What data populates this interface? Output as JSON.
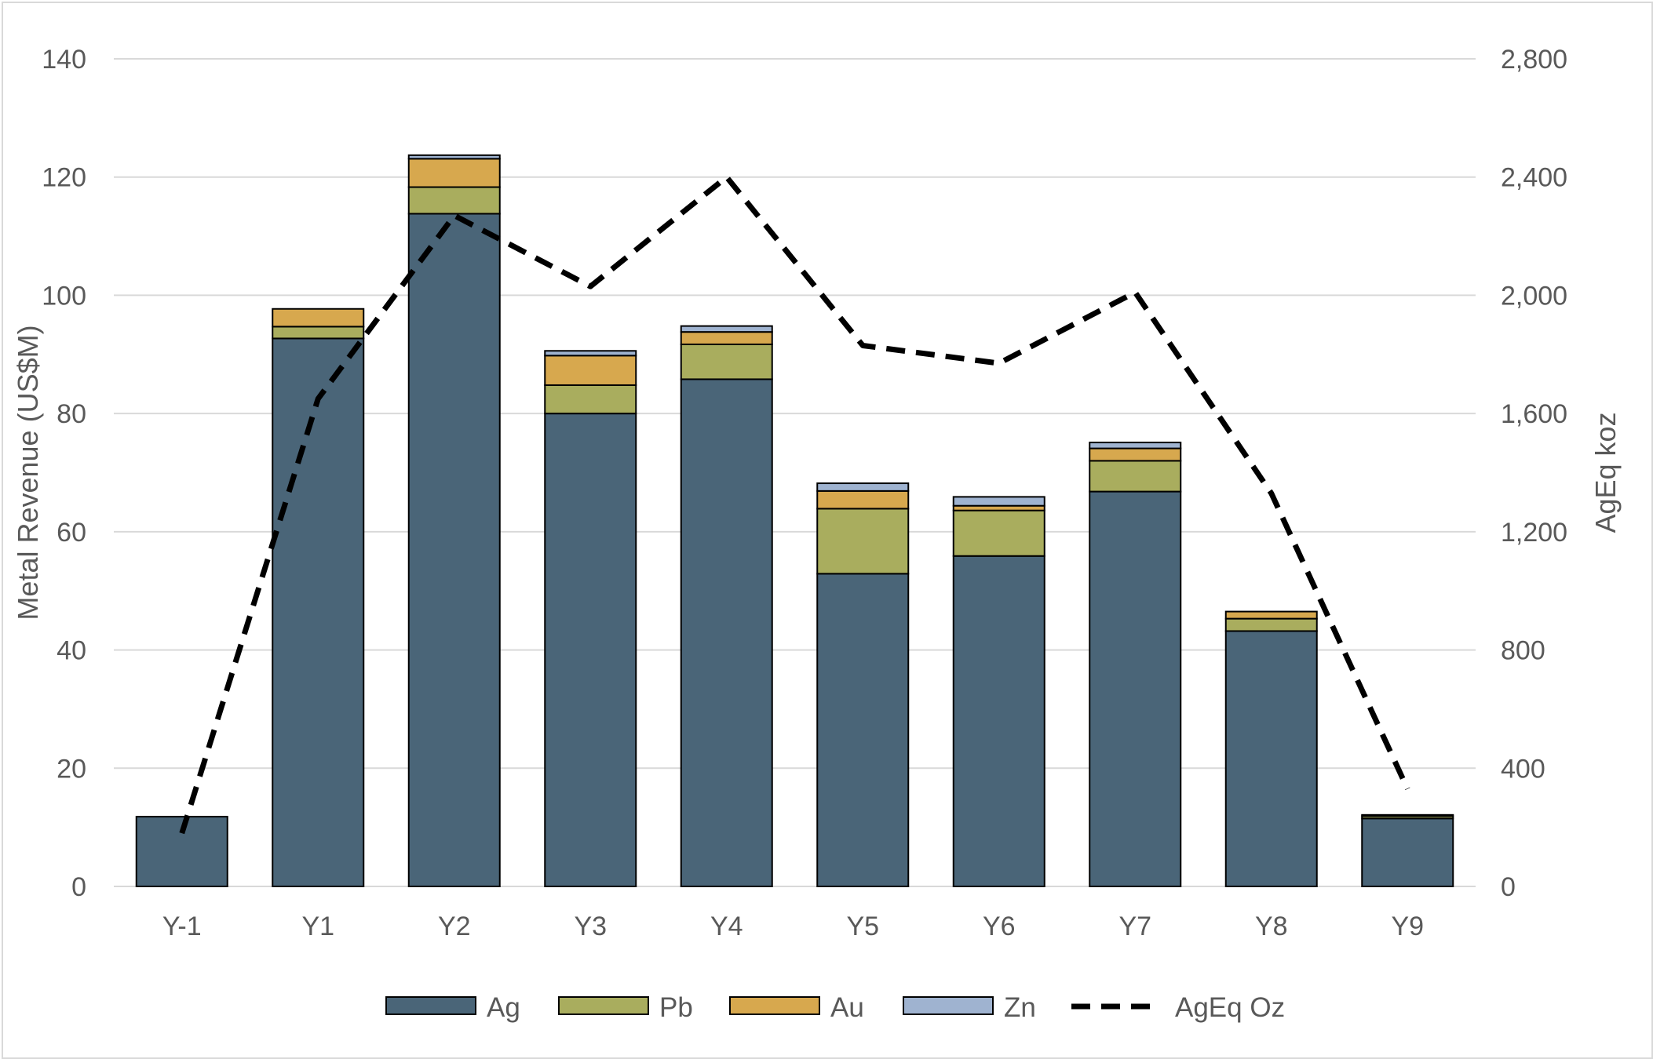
{
  "chart_data": {
    "type": "bar",
    "stacked": true,
    "categories": [
      "Y-1",
      "Y1",
      "Y2",
      "Y3",
      "Y4",
      "Y5",
      "Y6",
      "Y7",
      "Y8",
      "Y9"
    ],
    "series": [
      {
        "name": "Ag",
        "color": "#4a6578",
        "values": [
          11.8,
          92.7,
          113.8,
          80.0,
          85.8,
          52.9,
          55.9,
          66.8,
          43.2,
          11.5
        ]
      },
      {
        "name": "Pb",
        "color": "#a9ad5e",
        "values": [
          0,
          2.0,
          4.5,
          4.8,
          5.9,
          11.0,
          7.7,
          5.2,
          2.1,
          0.4
        ]
      },
      {
        "name": "Au",
        "color": "#d7a84e",
        "values": [
          0,
          3.0,
          4.8,
          5.0,
          2.1,
          3.0,
          0.8,
          2.1,
          1.2,
          0
        ]
      },
      {
        "name": "Zn",
        "color": "#9fb3d0",
        "values": [
          0,
          0,
          0.6,
          0.8,
          1.0,
          1.3,
          1.5,
          1.0,
          0,
          0.2
        ]
      }
    ],
    "line_series": {
      "name": "AgEq Oz",
      "axis": "right",
      "style": "dashed",
      "color": "#000000",
      "values": [
        180,
        1650,
        2270,
        2030,
        2400,
        1830,
        1770,
        2010,
        1330,
        330
      ]
    },
    "ylabel": "Metal Revenue (US$M)",
    "y2label": "AgEq koz",
    "ylim": [
      0,
      140
    ],
    "y2lim": [
      0,
      2800
    ],
    "yticks": [
      "0",
      "20",
      "40",
      "60",
      "80",
      "100",
      "120",
      "140"
    ],
    "y2ticks": [
      "0",
      "400",
      "800",
      "1,200",
      "1,600",
      "2,000",
      "2,400",
      "2,800"
    ],
    "grid": true,
    "legend": "bottom"
  }
}
